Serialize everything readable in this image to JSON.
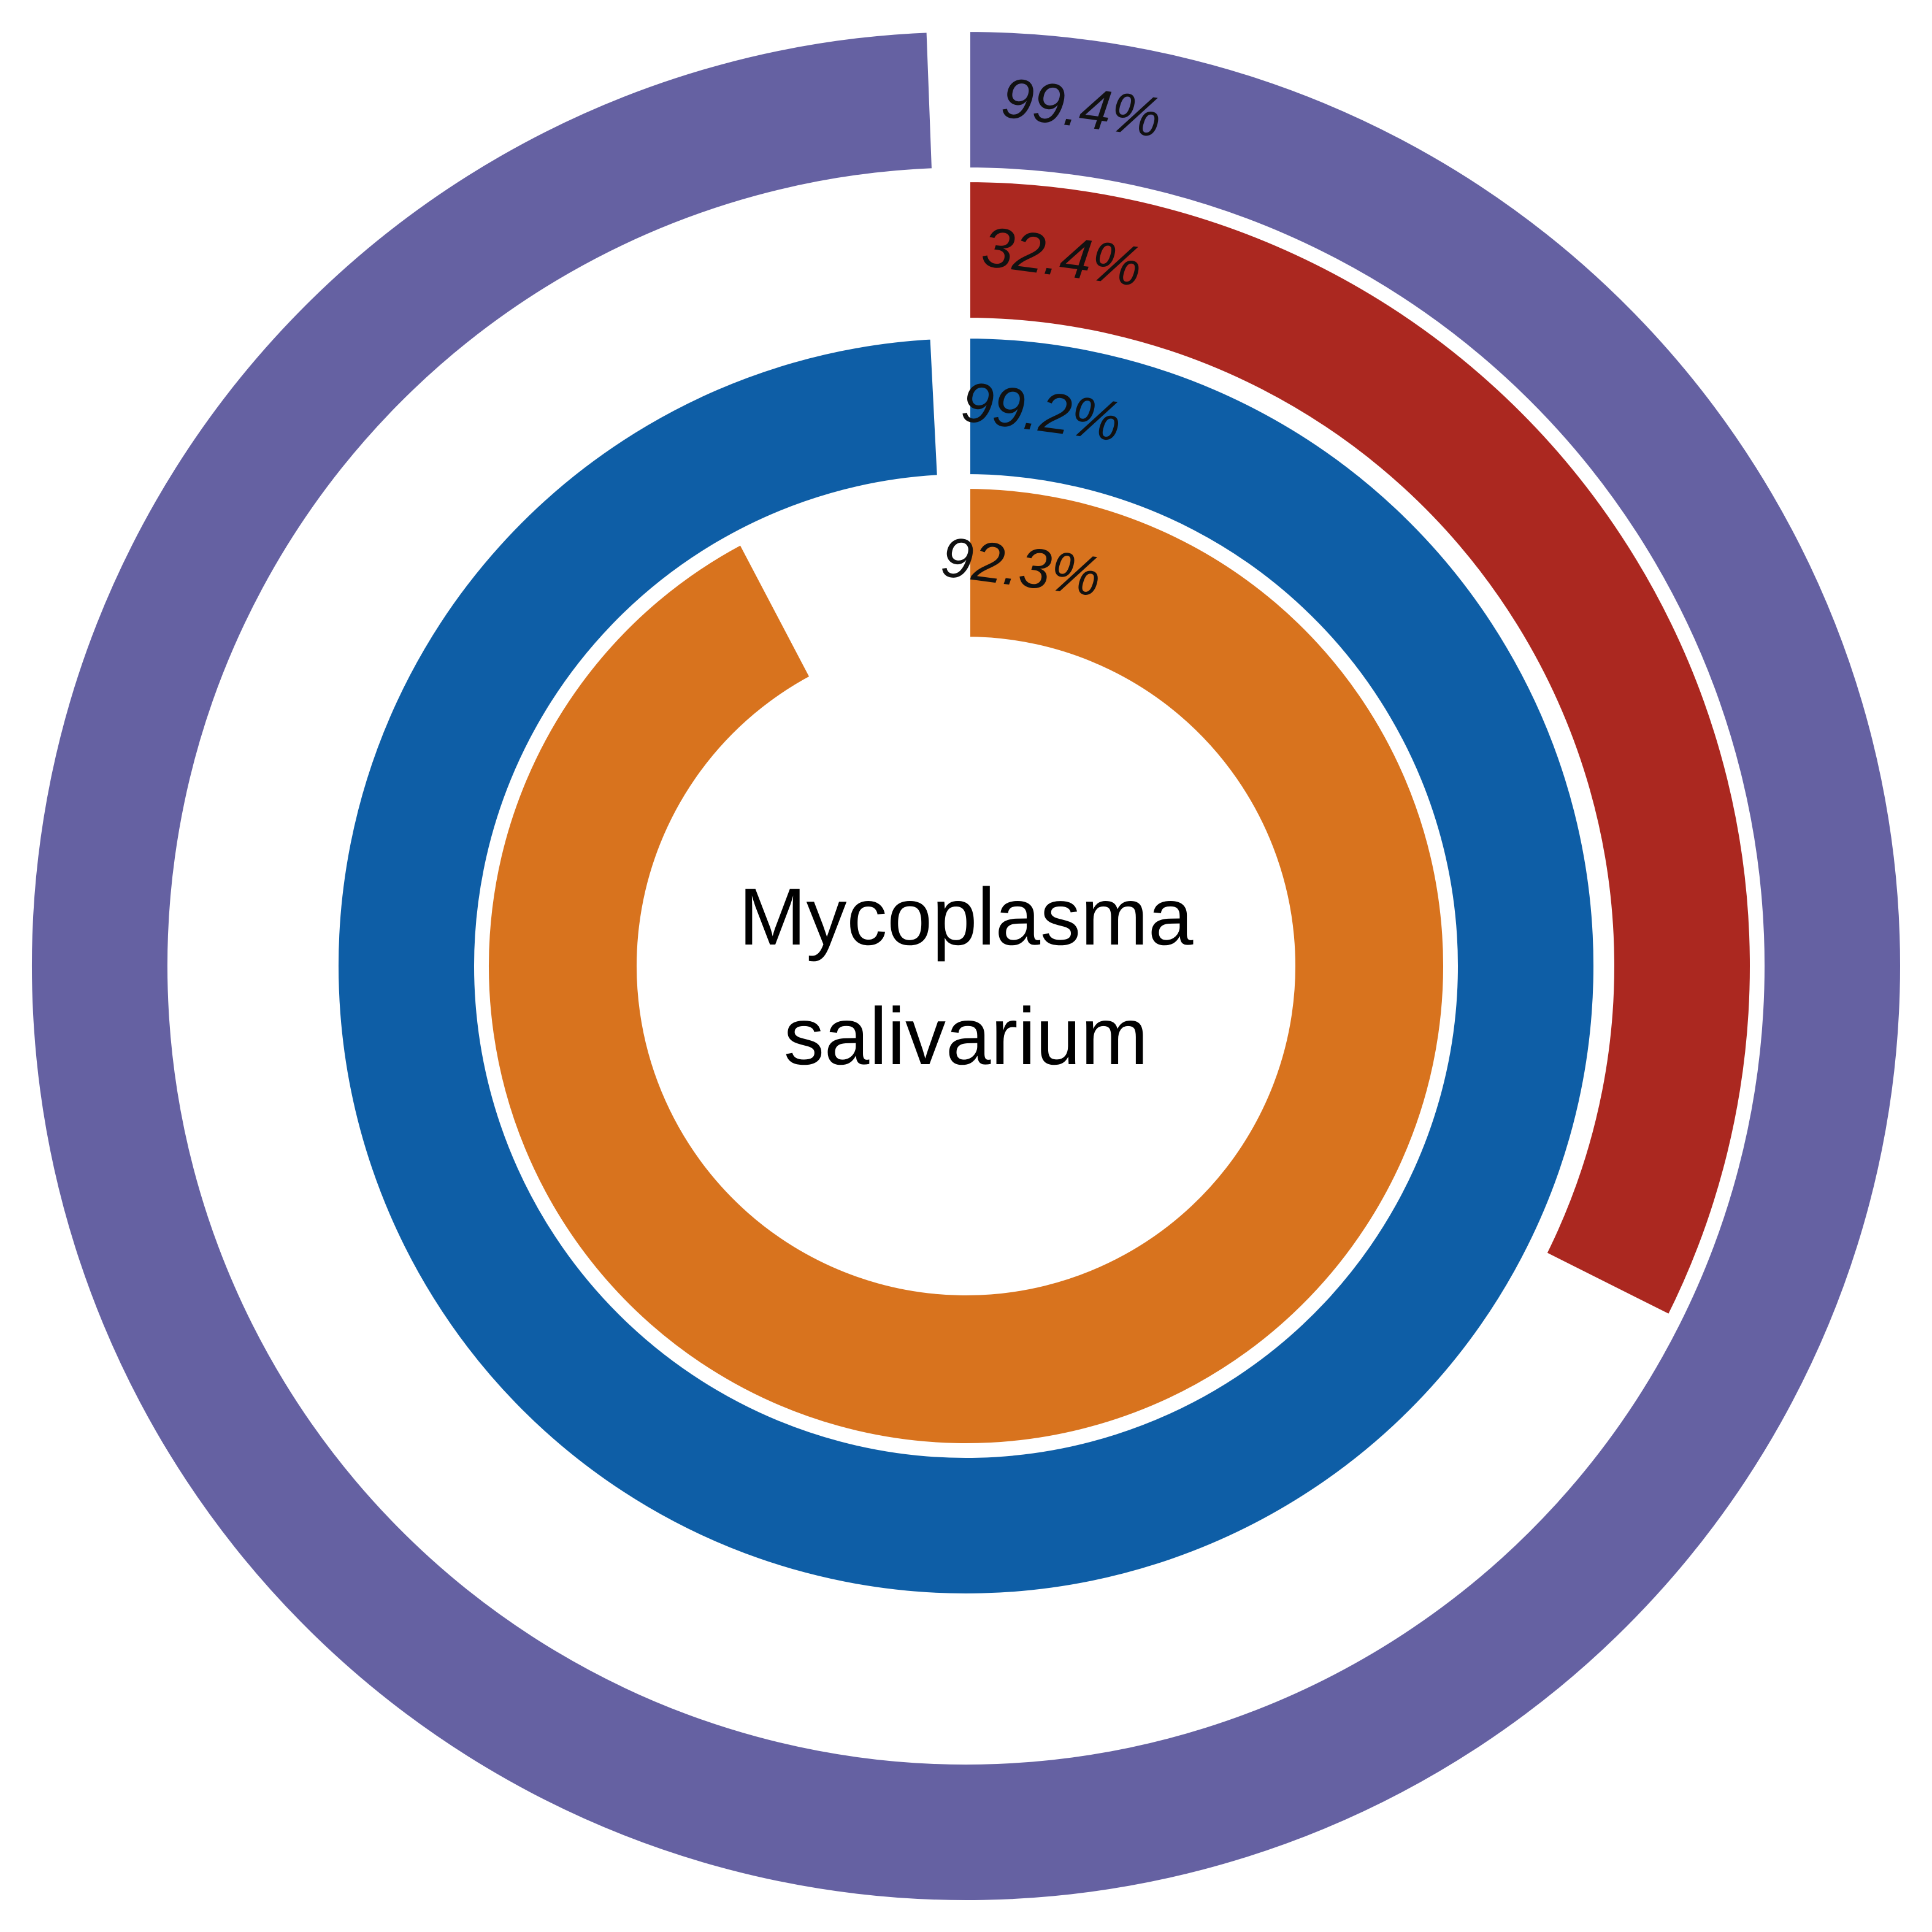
{
  "chart_data": {
    "type": "radial-bar",
    "center_label": [
      "Mycoplasma",
      "salivarium"
    ],
    "max_value": 100,
    "rings": [
      {
        "value": 99.4,
        "label": "99.4%",
        "color": "#6561a2"
      },
      {
        "value": 32.4,
        "label": "32.4%",
        "color": "#ab2820"
      },
      {
        "value": 99.2,
        "label": "99.2%",
        "color": "#0e5ea6"
      },
      {
        "value": 92.3,
        "label": "92.3%",
        "color": "#d8731e"
      }
    ]
  }
}
